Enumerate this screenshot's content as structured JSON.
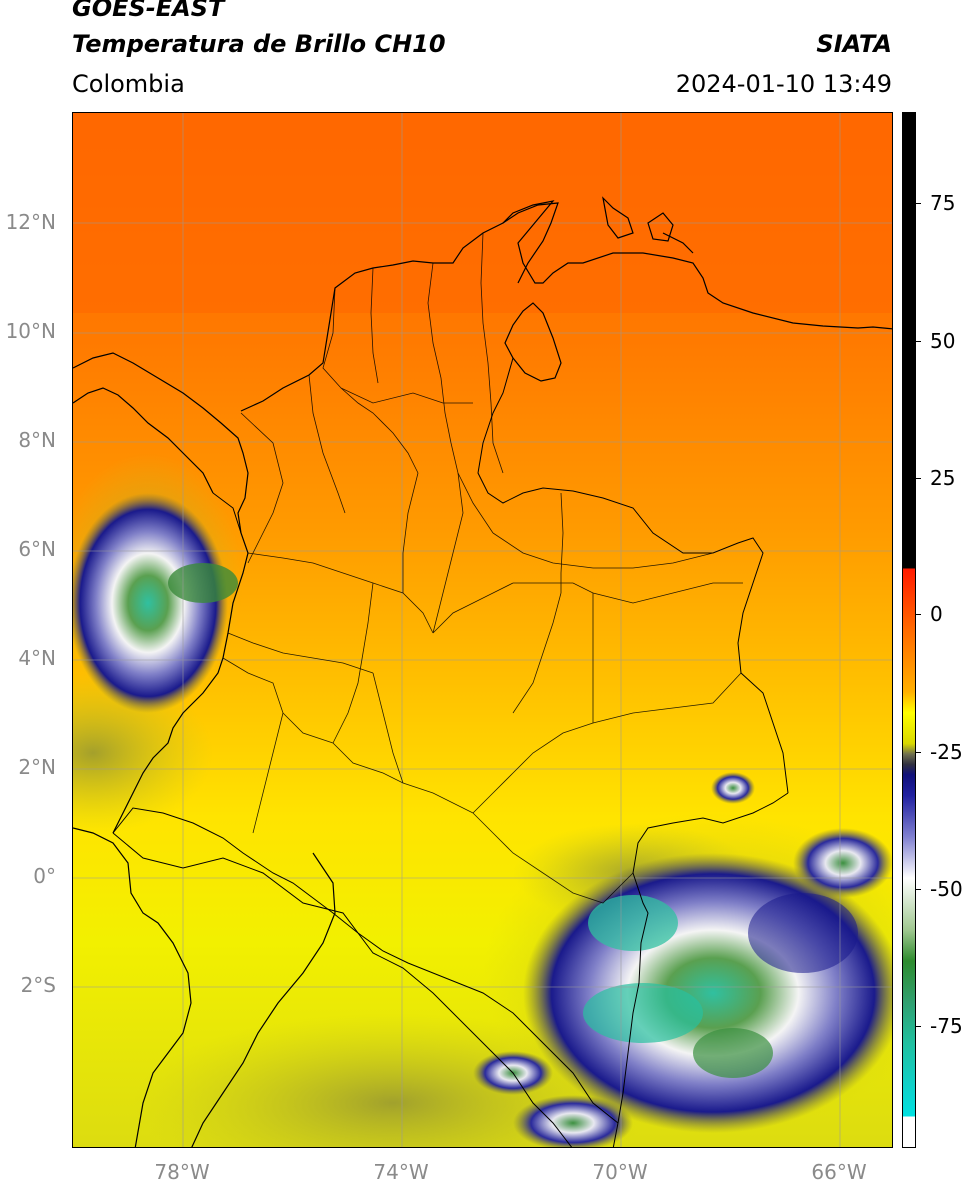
{
  "header": {
    "satellite": "GOES-EAST",
    "product": "Temperatura de Brillo CH10",
    "agency": "SIATA",
    "region": "Colombia",
    "timestamp": "2024-01-10 13:49"
  },
  "map": {
    "lat_labels": [
      "12°N",
      "10°N",
      "8°N",
      "6°N",
      "4°N",
      "2°N",
      "0°",
      "2°S"
    ],
    "lon_labels": [
      "78°W",
      "74°W",
      "70°W",
      "66°W"
    ],
    "lat_range": [
      -5,
      14
    ],
    "lon_range": [
      -80,
      -65
    ],
    "grid": true
  },
  "colorbar": {
    "ticks": [
      "75",
      "50",
      "25",
      "0",
      "-25",
      "-50",
      "-75"
    ],
    "range": [
      -95,
      90
    ],
    "colors": {
      "warm_black": "#000000",
      "red": "#ff1a00",
      "orange": "#ff7a00",
      "yellow": "#ffff00",
      "olive": "#8a8a30",
      "navy": "#1a1a8c",
      "white": "#ffffff",
      "green": "#2e8b2e",
      "teal": "#20c0a0",
      "cyan": "#00e0e0"
    }
  }
}
